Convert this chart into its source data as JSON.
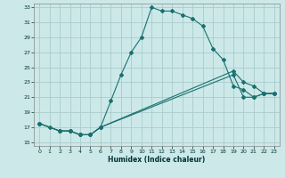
{
  "xlabel": "Humidex (Indice chaleur)",
  "bg_color": "#cce8e8",
  "grid_color": "#aacccc",
  "line_color": "#1a7070",
  "xlim": [
    -0.5,
    23.5
  ],
  "ylim": [
    14.5,
    33.5
  ],
  "xticks": [
    0,
    1,
    2,
    3,
    4,
    5,
    6,
    7,
    8,
    9,
    10,
    11,
    12,
    13,
    14,
    15,
    16,
    17,
    18,
    19,
    20,
    21,
    22,
    23
  ],
  "yticks": [
    15,
    17,
    19,
    21,
    23,
    25,
    27,
    29,
    31,
    33
  ],
  "line1_x": [
    0,
    1,
    2,
    3,
    4,
    5,
    6,
    7,
    8,
    9,
    10,
    11,
    12,
    13,
    14,
    15,
    16,
    17,
    18,
    19,
    20,
    21,
    22,
    23
  ],
  "line1_y": [
    17.5,
    17.0,
    16.5,
    16.5,
    16.0,
    16.0,
    17.0,
    20.5,
    24.0,
    27.0,
    29.0,
    33.0,
    32.5,
    32.5,
    32.0,
    31.5,
    30.5,
    27.5,
    26.0,
    22.5,
    22.0,
    21.0,
    21.5,
    21.5
  ],
  "line2_x": [
    0,
    2,
    3,
    4,
    5,
    6,
    19,
    20,
    21,
    22,
    23
  ],
  "line2_y": [
    17.5,
    16.5,
    16.5,
    16.0,
    16.0,
    17.0,
    24.5,
    23.0,
    22.5,
    21.5,
    21.5
  ],
  "line3_x": [
    0,
    2,
    3,
    4,
    5,
    6,
    19,
    20,
    21,
    22,
    23
  ],
  "line3_y": [
    17.5,
    16.5,
    16.5,
    16.0,
    16.0,
    17.0,
    24.0,
    21.0,
    21.0,
    21.5,
    21.5
  ],
  "line1_markers": [
    0,
    1,
    2,
    3,
    4,
    5,
    6,
    7,
    8,
    9,
    10,
    11,
    12,
    13,
    14,
    15,
    16,
    17,
    18,
    19,
    20,
    21,
    22,
    23
  ],
  "line2_markers": [
    0,
    2,
    3,
    4,
    5,
    6,
    19,
    20,
    21,
    22,
    23
  ],
  "line3_markers": [
    0,
    2,
    3,
    4,
    5,
    6,
    19,
    20,
    21,
    22,
    23
  ]
}
